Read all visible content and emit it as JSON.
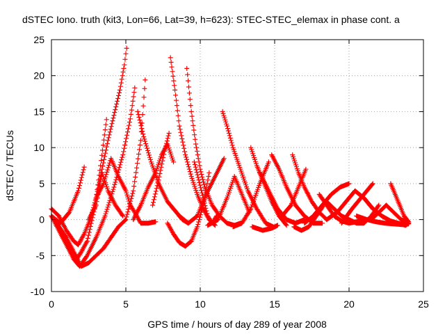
{
  "chart_data": {
    "type": "scatter",
    "title": "dSTEC Iono. truth (kit3, Lon=66, Lat=39, h=623): STEC-STEC_elemax in phase cont. a",
    "xlabel": "GPS time / hours of day 289 of year 2008",
    "ylabel": "dSTEC  / TECUs",
    "xlim": [
      0,
      25
    ],
    "ylim": [
      -10,
      25
    ],
    "xticks": [
      0,
      5,
      10,
      15,
      20,
      25
    ],
    "yticks": [
      -10,
      -5,
      0,
      5,
      10,
      15,
      20,
      25
    ],
    "grid": true,
    "marker": "plus",
    "marker_color": "#ff0000",
    "series": [
      {
        "x": [
          0.0,
          0.5,
          1.0,
          1.5,
          1.8,
          2.2,
          2.6,
          3.0,
          3.4,
          3.8,
          4.2,
          4.6,
          4.9,
          5.05
        ],
        "y": [
          1.5,
          0.5,
          -1.5,
          -3.0,
          -3.5,
          -2.0,
          0.0,
          3.0,
          7.0,
          11.0,
          14.5,
          18.0,
          21.5,
          23.8
        ]
      },
      {
        "x": [
          0.0,
          0.5,
          1.0,
          1.5,
          1.9,
          2.4,
          3.0,
          3.6,
          4.2,
          4.8,
          5.3,
          5.6
        ],
        "y": [
          0.5,
          -1.5,
          -3.5,
          -5.5,
          -6.5,
          -5.0,
          -2.5,
          0.5,
          4.5,
          9.0,
          14.0,
          18.3
        ]
      },
      {
        "x": [
          0.3,
          0.8,
          1.3,
          1.7,
          2.0,
          2.4,
          2.9,
          3.3,
          3.7
        ],
        "y": [
          -0.3,
          -2.0,
          -4.0,
          -5.5,
          -4.5,
          -3.0,
          1.5,
          7.5,
          13.9
        ]
      },
      {
        "x": [
          0.5,
          1.0,
          1.5,
          2.0,
          2.5,
          3.0,
          3.5,
          4.0,
          4.5,
          5.0,
          5.5,
          6.0,
          6.3
        ],
        "y": [
          -1.0,
          -2.5,
          -4.5,
          -6.5,
          -6.0,
          -5.0,
          -4.0,
          -2.5,
          -1.0,
          0.0,
          4.0,
          11.0,
          19.4
        ]
      },
      {
        "x": [
          0.0,
          0.6,
          1.2,
          1.8,
          2.2
        ],
        "y": [
          0.5,
          -0.5,
          1.0,
          4.0,
          7.3
        ]
      },
      {
        "x": [
          2.5,
          3.0,
          3.4,
          3.8,
          4.3,
          4.8
        ],
        "y": [
          0.0,
          2.0,
          6.5,
          4.0,
          2.0,
          0.5
        ]
      },
      {
        "x": [
          3.0,
          3.5,
          4.0,
          4.5,
          5.0,
          5.3,
          5.6,
          6.0,
          6.5,
          7.0
        ],
        "y": [
          3.0,
          5.0,
          8.5,
          6.0,
          4.0,
          2.0,
          1.0,
          -0.5,
          -0.5,
          -0.3
        ]
      },
      {
        "x": [
          5.8,
          6.2,
          6.7,
          7.2,
          7.8,
          8.4,
          8.8,
          9.2
        ],
        "y": [
          15.0,
          11.5,
          8.0,
          5.0,
          2.5,
          1.0,
          0.0,
          -0.5
        ]
      },
      {
        "x": [
          5.5,
          6.0,
          6.5,
          7.0,
          7.4,
          7.8,
          8.2
        ],
        "y": [
          0.0,
          2.0,
          4.5,
          6.5,
          9.0,
          10.5,
          8.0
        ]
      },
      {
        "x": [
          6.8,
          7.2,
          7.6,
          7.9
        ],
        "y": [
          2.0,
          5.5,
          9.5,
          12.0
        ]
      },
      {
        "x": [
          8.0,
          8.3,
          8.6,
          9.0,
          9.4,
          9.8,
          10.2,
          10.6,
          11.0
        ],
        "y": [
          22.5,
          18.0,
          13.0,
          9.0,
          6.0,
          3.5,
          1.5,
          0.0,
          -0.8
        ]
      },
      {
        "x": [
          7.8,
          8.2,
          8.6,
          9.0,
          9.4,
          9.8,
          10.2,
          10.6
        ],
        "y": [
          -0.5,
          -2.0,
          -3.2,
          -3.7,
          -3.0,
          -1.0,
          2.0,
          6.5
        ]
      },
      {
        "x": [
          9.1,
          9.4,
          9.7,
          10.0,
          10.3,
          10.8,
          11.3,
          11.8,
          12.3,
          12.7
        ],
        "y": [
          21.0,
          15.0,
          10.5,
          7.0,
          4.5,
          2.0,
          0.5,
          -0.5,
          -0.8,
          -0.5
        ]
      },
      {
        "x": [
          9.6,
          9.9,
          10.2,
          10.5,
          10.8,
          11.1
        ],
        "y": [
          8.0,
          5.5,
          3.0,
          0.5,
          -0.5,
          0.5
        ]
      },
      {
        "x": [
          8.6,
          9.2,
          9.8,
          10.4,
          11.0,
          11.6
        ],
        "y": [
          0.5,
          -0.5,
          0.5,
          3.5,
          6.0,
          8.5
        ]
      },
      {
        "x": [
          11.5,
          11.8,
          12.2,
          12.7,
          13.2,
          13.8,
          14.4,
          14.9
        ],
        "y": [
          15.0,
          13.0,
          10.0,
          7.0,
          4.0,
          1.5,
          -0.5,
          -1.0
        ]
      },
      {
        "x": [
          10.5,
          11.2,
          11.8,
          12.3,
          12.8,
          13.3
        ],
        "y": [
          -0.8,
          0.0,
          3.0,
          6.0,
          3.5,
          1.0
        ]
      },
      {
        "x": [
          12.2,
          12.8,
          13.4,
          14.0,
          14.6
        ],
        "y": [
          -1.0,
          -0.5,
          1.5,
          5.0,
          8.0
        ]
      },
      {
        "x": [
          13.4,
          13.8,
          14.3,
          14.8,
          15.3,
          15.8
        ],
        "y": [
          10.0,
          7.5,
          5.0,
          2.5,
          0.5,
          -0.8
        ]
      },
      {
        "x": [
          14.0,
          14.6,
          15.2,
          15.8,
          16.4,
          17.0
        ],
        "y": [
          6.5,
          4.0,
          1.5,
          0.0,
          -0.5,
          0.0
        ]
      },
      {
        "x": [
          14.8,
          15.3,
          15.8,
          16.4,
          17.0,
          17.6,
          18.2
        ],
        "y": [
          9.0,
          7.0,
          4.5,
          2.0,
          0.5,
          -0.5,
          -0.5
        ]
      },
      {
        "x": [
          13.5,
          14.2,
          14.8,
          15.2
        ],
        "y": [
          -1.0,
          -1.5,
          -1.2,
          -0.8
        ]
      },
      {
        "x": [
          16.2,
          16.6,
          17.0,
          17.5,
          18.0,
          18.5
        ],
        "y": [
          9.0,
          6.5,
          4.5,
          2.5,
          1.0,
          0.0
        ]
      },
      {
        "x": [
          16.3,
          16.8,
          17.3,
          17.8,
          18.3
        ],
        "y": [
          -1.0,
          -1.5,
          -1.0,
          0.5,
          2.0
        ]
      },
      {
        "x": [
          15.5,
          16.1,
          16.6,
          17.1
        ],
        "y": [
          0.5,
          2.0,
          4.5,
          7.0
        ]
      },
      {
        "x": [
          18.0,
          18.5,
          19.0,
          19.5,
          20.0,
          20.5,
          21.0
        ],
        "y": [
          3.5,
          2.0,
          0.5,
          -0.2,
          -0.5,
          -0.3,
          0.0
        ]
      },
      {
        "x": [
          18.5,
          19.0,
          19.5,
          20.0,
          20.5,
          21.0,
          21.5,
          22.0
        ],
        "y": [
          2.5,
          1.5,
          0.5,
          0.0,
          -0.5,
          -0.5,
          0.5,
          2.0
        ]
      },
      {
        "x": [
          18.5,
          19.2,
          19.8,
          20.4,
          21.0,
          21.6
        ],
        "y": [
          0.0,
          1.0,
          2.5,
          4.0,
          3.0,
          1.5
        ]
      },
      {
        "x": [
          17.0,
          17.6,
          18.2,
          18.8,
          19.4,
          20.0
        ],
        "y": [
          -0.5,
          0.5,
          2.0,
          3.5,
          4.5,
          5.0
        ]
      },
      {
        "x": [
          19.5,
          20.2,
          20.8,
          21.4,
          21.6
        ],
        "y": [
          -0.5,
          1.5,
          3.0,
          4.5,
          5.0
        ]
      },
      {
        "x": [
          21.0,
          21.6,
          22.2,
          22.8,
          23.3,
          23.8,
          24.0
        ],
        "y": [
          3.0,
          1.5,
          0.5,
          -0.2,
          -0.5,
          -0.8,
          -0.5
        ]
      },
      {
        "x": [
          22.8,
          23.1,
          23.4,
          23.7,
          24.0
        ],
        "y": [
          5.0,
          3.5,
          2.0,
          0.5,
          -0.3
        ]
      },
      {
        "x": [
          21.5,
          22.0,
          22.5,
          23.0,
          23.5,
          24.0
        ],
        "y": [
          0.0,
          1.0,
          2.0,
          1.0,
          0.0,
          -0.5
        ]
      },
      {
        "x": [
          20.5,
          21.2,
          21.8,
          22.4,
          23.0,
          23.6,
          24.0
        ],
        "y": [
          0.5,
          0.0,
          -0.3,
          -0.5,
          -0.6,
          -0.7,
          -0.6
        ]
      }
    ]
  }
}
